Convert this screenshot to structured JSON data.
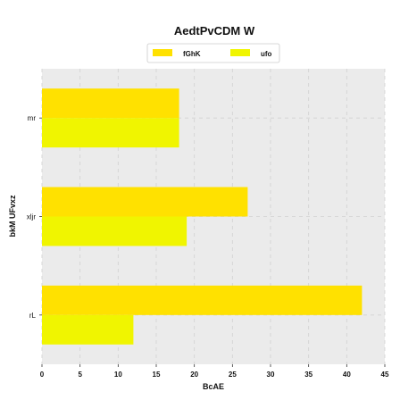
{
  "chart_data": {
    "type": "bar",
    "orientation": "horizontal",
    "title": "AedtPvCDM W",
    "xlabel": "BcAE",
    "ylabel": "bkM UFvxz",
    "categories": [
      "mr",
      "xljr",
      "rL"
    ],
    "series": [
      {
        "name": "fGhK",
        "values": [
          18,
          27,
          42
        ]
      },
      {
        "name": "ufo",
        "values": [
          18,
          19,
          12
        ]
      }
    ],
    "xlim": [
      0,
      45
    ],
    "xticks": [
      0,
      5,
      10,
      15,
      20,
      25,
      30,
      35,
      40,
      45
    ],
    "grid": true,
    "legend_position": "top-center"
  },
  "colors": {
    "series": [
      "#ffe100",
      "#f0f500"
    ],
    "plot_background": "#ebebeb",
    "grid": "#d2d2d2"
  }
}
